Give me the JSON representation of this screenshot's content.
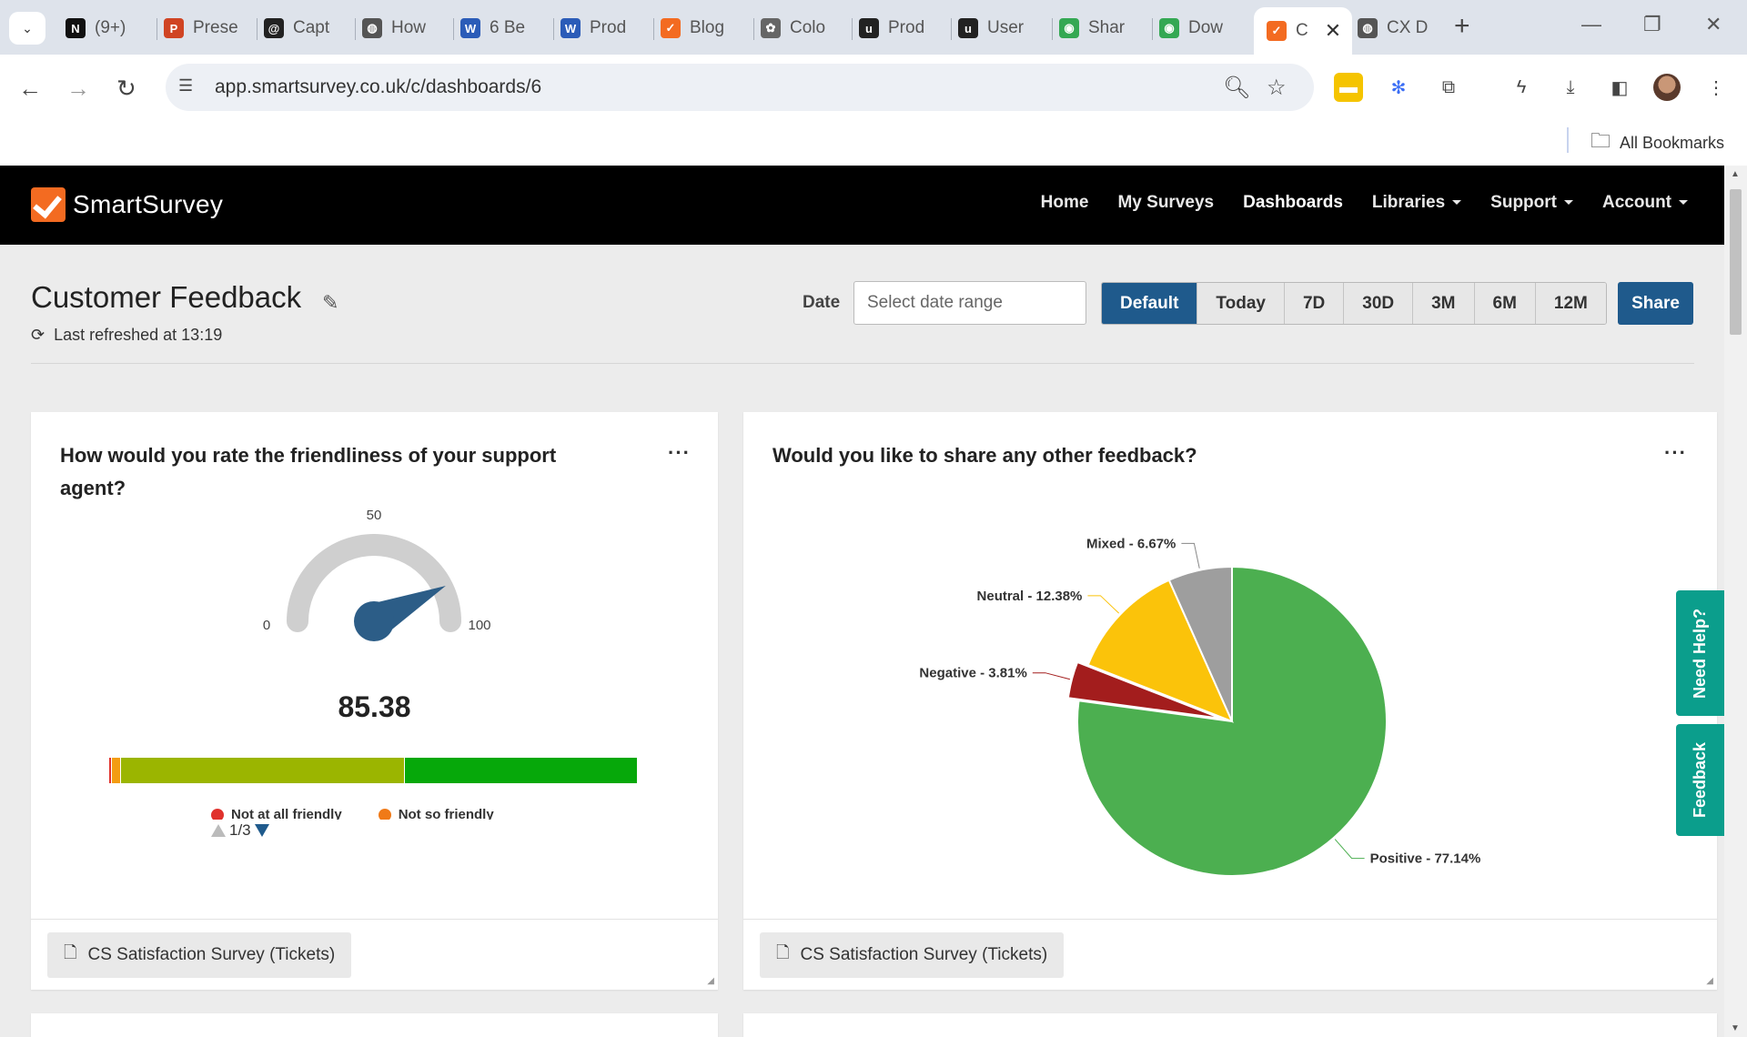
{
  "browser": {
    "tabs": [
      {
        "label": "(9+)",
        "icon": "notion-icon"
      },
      {
        "label": "Prese",
        "icon": "powerpoint-icon"
      },
      {
        "label": "Capt",
        "icon": "at-sign-icon"
      },
      {
        "label": "How",
        "icon": "globe-icon"
      },
      {
        "label": "6 Be",
        "icon": "word-icon"
      },
      {
        "label": "Prod",
        "icon": "word-icon"
      },
      {
        "label": "Blog",
        "icon": "smartsurvey-icon"
      },
      {
        "label": "Colo",
        "icon": "colorwheel-icon"
      },
      {
        "label": "Prod",
        "icon": "u-icon"
      },
      {
        "label": "User",
        "icon": "u-icon"
      },
      {
        "label": "Shar",
        "icon": "chrome-icon"
      },
      {
        "label": "Dow",
        "icon": "chrome-icon"
      },
      {
        "label": "C",
        "icon": "smartsurvey-icon",
        "active": true
      },
      {
        "label": "CX D",
        "icon": "globe-icon"
      }
    ],
    "url": "app.smartsurvey.co.uk/c/dashboards/6",
    "bookmarks_label": "All Bookmarks"
  },
  "app": {
    "logo_text": "SmartSurvey",
    "nav": [
      {
        "label": "Home",
        "dropdown": false
      },
      {
        "label": "My Surveys",
        "dropdown": false
      },
      {
        "label": "Dashboards",
        "dropdown": false,
        "active": true
      },
      {
        "label": "Libraries",
        "dropdown": true
      },
      {
        "label": "Support",
        "dropdown": true
      },
      {
        "label": "Account",
        "dropdown": true
      }
    ]
  },
  "dashboard": {
    "title": "Customer Feedback",
    "last_refreshed": "Last refreshed at 13:19",
    "date_label": "Date",
    "date_placeholder": "Select date range",
    "ranges": [
      "Default",
      "Today",
      "7D",
      "30D",
      "3M",
      "6M",
      "12M"
    ],
    "active_range": "Default",
    "share_label": "Share"
  },
  "cards": {
    "friendliness": {
      "title": "How would you rate the friendliness of your support agent?",
      "menu": "···",
      "gauge": {
        "min_label": "0",
        "mid_label": "50",
        "max_label": "100",
        "min": 0,
        "max": 100,
        "value": 85.38,
        "value_text": "85.38"
      },
      "distribution": [
        {
          "color": "#e0322d",
          "share": 0.004
        },
        {
          "color": "#f39c12",
          "share": 0.017
        },
        {
          "color": "#9bb500",
          "share": 0.537
        },
        {
          "color": "#06a80a",
          "share": 0.442
        }
      ],
      "legend": [
        {
          "label": "Not at all friendly",
          "color": "#e0322d"
        },
        {
          "label": "Not so friendly",
          "color": "#f07a18"
        }
      ],
      "pager": "1/3",
      "footer": "CS Satisfaction Survey (Tickets)"
    },
    "feedback": {
      "title": "Would you like to share any other feedback?",
      "menu": "···",
      "footer": "CS Satisfaction Survey (Tickets)"
    }
  },
  "chart_data": {
    "type": "pie",
    "slices": [
      {
        "label": "Positive - 77.14%",
        "value": 77.14,
        "color": "#4caf50"
      },
      {
        "label": "Negative - 3.81%",
        "value": 3.81,
        "color": "#a31d1d",
        "exploded": true
      },
      {
        "label": "Neutral - 12.38%",
        "value": 12.38,
        "color": "#fbc30a"
      },
      {
        "label": "Mixed - 6.67%",
        "value": 6.67,
        "color": "#9e9e9e"
      }
    ]
  },
  "side_tabs": {
    "help": "Need Help?",
    "feedback": "Feedback"
  }
}
